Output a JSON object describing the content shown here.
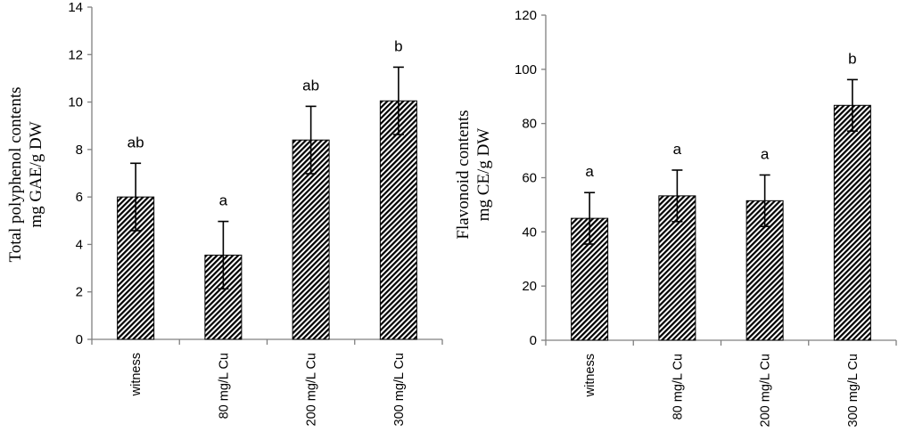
{
  "chart_data": [
    {
      "type": "bar",
      "categories": [
        "witness",
        "80 mg/L Cu",
        "200 mg/L Cu",
        "300 mg/L Cu"
      ],
      "values": [
        6.0,
        3.55,
        8.4,
        10.05
      ],
      "errors": [
        1.42,
        1.42,
        1.42,
        1.42
      ],
      "letters": [
        "ab",
        "a",
        "ab",
        "b"
      ],
      "ylabel": [
        "Total polyphenol contents",
        "mg GAE/g DW"
      ],
      "ylim": [
        0,
        14
      ],
      "yticks": [
        0,
        2,
        4,
        6,
        8,
        10,
        12,
        14
      ],
      "grid": false,
      "bar_fill": "hatched"
    },
    {
      "type": "bar",
      "categories": [
        "witness",
        "80 mg/L Cu",
        "200 mg/L Cu",
        "300 mg/L Cu"
      ],
      "values": [
        45,
        53.3,
        51.5,
        86.7
      ],
      "errors": [
        9.5,
        9.5,
        9.5,
        9.5
      ],
      "letters": [
        "a",
        "a",
        "a",
        "b"
      ],
      "ylabel": [
        "Flavonoid contents",
        "mg CE/g DW"
      ],
      "ylim": [
        0,
        120
      ],
      "yticks": [
        0,
        20,
        40,
        60,
        80,
        100,
        120
      ],
      "grid": false,
      "bar_fill": "hatched"
    }
  ],
  "colors": {
    "bar_stripe": "#000000",
    "bar_bg": "#ffffff",
    "axis": "#808080"
  }
}
